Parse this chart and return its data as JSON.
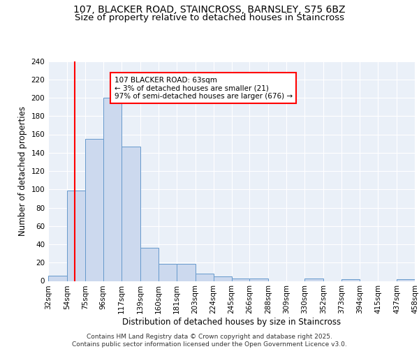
{
  "title_line1": "107, BLACKER ROAD, STAINCROSS, BARNSLEY, S75 6BZ",
  "title_line2": "Size of property relative to detached houses in Staincross",
  "xlabel": "Distribution of detached houses by size in Staincross",
  "ylabel": "Number of detached properties",
  "full_bar_vals": [
    6,
    99,
    155,
    200,
    147,
    36,
    19,
    19,
    8,
    5,
    3,
    3,
    0,
    0,
    3,
    0,
    2,
    0,
    0,
    2
  ],
  "all_edges": [
    32,
    54,
    75,
    96,
    117,
    139,
    160,
    181,
    203,
    224,
    245,
    266,
    288,
    309,
    330,
    352,
    373,
    394,
    415,
    437,
    458
  ],
  "bar_color": "#ccd9ee",
  "bar_edge_color": "#6699cc",
  "red_line_x": 63,
  "annotation_text": "107 BLACKER ROAD: 63sqm\n← 3% of detached houses are smaller (21)\n97% of semi-detached houses are larger (676) →",
  "annotation_box_color": "white",
  "annotation_box_edge": "red",
  "ylim_max": 240,
  "yticks": [
    0,
    20,
    40,
    60,
    80,
    100,
    120,
    140,
    160,
    180,
    200,
    220,
    240
  ],
  "background_color": "#eaf0f8",
  "grid_color": "#ffffff",
  "footer_text": "Contains HM Land Registry data © Crown copyright and database right 2025.\nContains public sector information licensed under the Open Government Licence v3.0.",
  "title_fontsize": 10,
  "subtitle_fontsize": 9.5,
  "axis_label_fontsize": 8.5,
  "tick_fontsize": 7.5,
  "annotation_fontsize": 7.5,
  "footer_fontsize": 6.5
}
